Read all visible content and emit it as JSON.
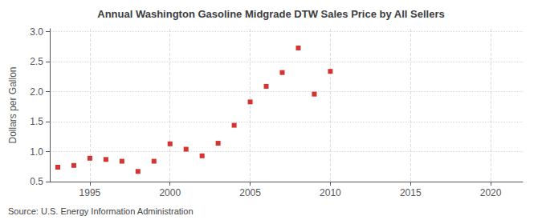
{
  "chart_data": {
    "type": "scatter",
    "title": "Annual Washington Gasoline Midgrade DTW Sales Price by All Sellers",
    "ylabel": "Dollars per Gallon",
    "source": "Source: U.S. Energy Information Administration",
    "x": [
      1993,
      1994,
      1995,
      1996,
      1997,
      1998,
      1999,
      2000,
      2001,
      2002,
      2003,
      2004,
      2005,
      2006,
      2007,
      2008,
      2009,
      2010
    ],
    "values": [
      0.74,
      0.77,
      0.89,
      0.87,
      0.84,
      0.67,
      0.84,
      1.13,
      1.04,
      0.93,
      1.14,
      1.44,
      1.83,
      2.09,
      2.32,
      2.73,
      1.96,
      2.34
    ],
    "color": "#cc0000",
    "marker": "square",
    "xlim": [
      1992.5,
      2022
    ],
    "xticks": [
      1995,
      2000,
      2005,
      2010,
      2015,
      2020
    ],
    "ylim": [
      0.5,
      3.05
    ],
    "yticks": [
      0.5,
      {
        "value": 1.0,
        "label": "1.0"
      },
      1.5,
      {
        "value": 2.0,
        "label": "2.0"
      },
      2.5,
      {
        "value": 3.0,
        "label": "3.0"
      }
    ],
    "grid": true
  }
}
